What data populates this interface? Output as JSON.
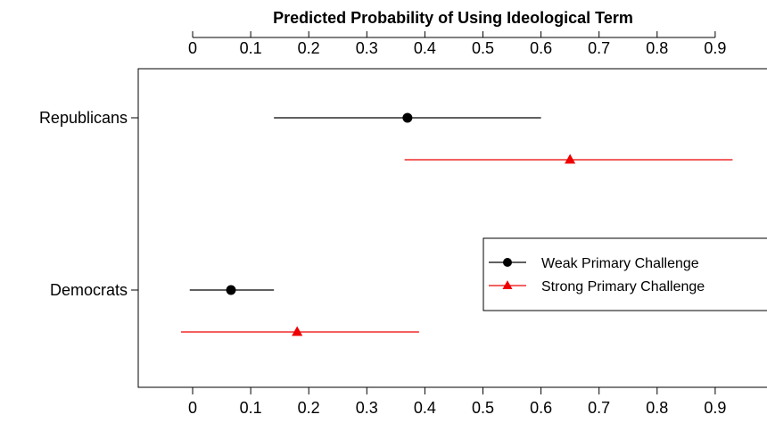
{
  "chart_data": {
    "type": "scatter",
    "title": "Predicted Probability of Using Ideological Term",
    "xlim": [
      -0.08,
      1.0
    ],
    "x_ticks": [
      0,
      0.1,
      0.2,
      0.3,
      0.4,
      0.5,
      0.6,
      0.7,
      0.8,
      0.9
    ],
    "x_tick_labels": [
      "0",
      "0.1",
      "0.2",
      "0.3",
      "0.4",
      "0.5",
      "0.6",
      "0.7",
      "0.8",
      "0.9"
    ],
    "categories": [
      "Republicans",
      "Democrats"
    ],
    "series": [
      {
        "name": "Weak Primary Challenge",
        "color": "#000000",
        "marker": "circle",
        "points": [
          {
            "category": "Republicans",
            "estimate": 0.37,
            "lower": 0.14,
            "upper": 0.6
          },
          {
            "category": "Democrats",
            "estimate": 0.066,
            "lower": -0.005,
            "upper": 0.14
          }
        ]
      },
      {
        "name": "Strong Primary Challenge",
        "color": "#ee0000",
        "marker": "triangle",
        "points": [
          {
            "category": "Republicans",
            "estimate": 0.65,
            "lower": 0.365,
            "upper": 0.93
          },
          {
            "category": "Democrats",
            "estimate": 0.18,
            "lower": -0.02,
            "upper": 0.39
          }
        ]
      }
    ],
    "legend_position": "right",
    "grid": false
  }
}
